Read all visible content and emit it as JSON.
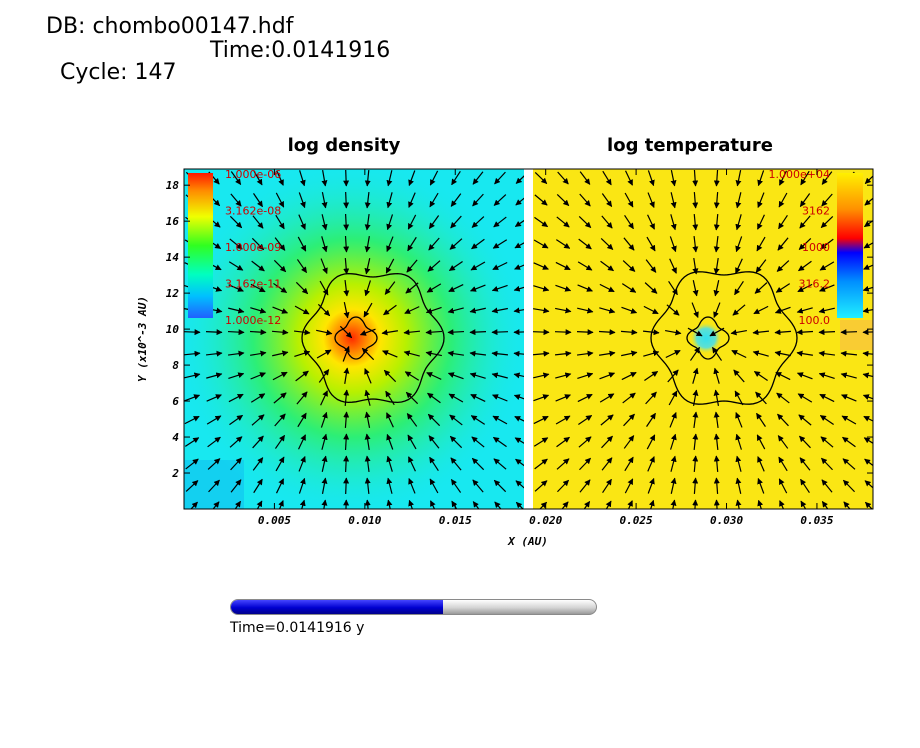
{
  "header": {
    "db_line": "DB: chombo00147.hdf",
    "cycle_line": "Cycle: 147",
    "time_line": "Time:0.0141916"
  },
  "chart_data": {
    "type": "heatmap",
    "panels": [
      {
        "title": "log density",
        "colorbar_labels": [
          "1.000e-06",
          "3.162e-08",
          "1.000e-09",
          "3.162e-11",
          "1.000e-12"
        ],
        "colorbar_side": "left",
        "background_color": "#18e8f0",
        "center_color": "#ff2a00"
      },
      {
        "title": "log temperature",
        "colorbar_labels": [
          "1.000e+04",
          "3162",
          "1000",
          "316.2",
          "100.0"
        ],
        "colorbar_side": "right",
        "background_color": "#fae614",
        "center_color": "#30e0f0"
      }
    ],
    "xlabel": "X (AU)",
    "ylabel": "Y (x10^-3 AU)",
    "x_ticks": [
      "0.005",
      "0.010",
      "0.015",
      "0.020",
      "0.025",
      "0.030",
      "0.035"
    ],
    "x_tick_values": [
      0.005,
      0.01,
      0.015,
      0.02,
      0.025,
      0.03,
      0.035
    ],
    "y_ticks": [
      "2",
      "4",
      "6",
      "8",
      "10",
      "12",
      "14",
      "16",
      "18"
    ],
    "y_tick_values": [
      2,
      4,
      6,
      8,
      10,
      12,
      14,
      16,
      18
    ],
    "xlim": [
      0.0,
      0.0381
    ],
    "ylim": [
      0.0,
      18.9
    ],
    "vector_field": "radial arrows pointing toward clump center",
    "contours": 2
  },
  "slider": {
    "progress": 0.58,
    "label": "Time=0.0141916 y"
  },
  "colors": {
    "slider_fill": "#0000d0",
    "slider_track": "#d4d4d4"
  }
}
